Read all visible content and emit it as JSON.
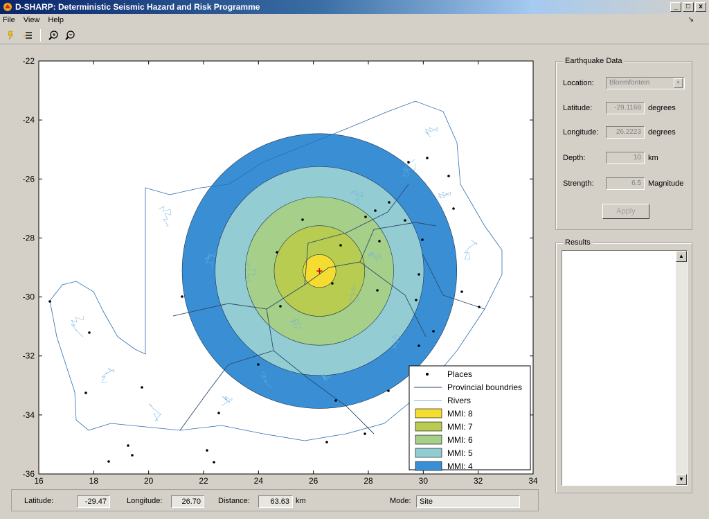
{
  "window": {
    "title": "D-SHARP: Deterministic Seismic Hazard and Risk Programme",
    "minimize": "_",
    "maximize": "□",
    "close": "x"
  },
  "menu": {
    "items": [
      "File",
      "View",
      "Help"
    ],
    "arrow": "↘"
  },
  "toolbar": {
    "icons": [
      "open-icon",
      "add-icon",
      "zoom-in-icon",
      "zoom-out-icon"
    ]
  },
  "map": {
    "x_ticks": [
      "16",
      "18",
      "20",
      "22",
      "24",
      "26",
      "28",
      "30",
      "32",
      "34"
    ],
    "y_ticks": [
      "-22",
      "-24",
      "-26",
      "-28",
      "-30",
      "-32",
      "-34",
      "-36"
    ],
    "xlim": [
      16,
      34
    ],
    "ylim": [
      -36,
      -22
    ],
    "epicenter": {
      "lon": 26.22,
      "lat": -29.12
    },
    "zones": [
      {
        "mmi": 4,
        "radius_deg": 5.0,
        "color": "#3a8fd4"
      },
      {
        "mmi": 5,
        "radius_deg": 3.8,
        "color": "#93cdd3"
      },
      {
        "mmi": 6,
        "radius_deg": 2.7,
        "color": "#a6cf8a"
      },
      {
        "mmi": 7,
        "radius_deg": 1.65,
        "color": "#b8cc52"
      },
      {
        "mmi": 8,
        "radius_deg": 0.6,
        "color": "#f4dd30"
      }
    ],
    "legend": {
      "places": "Places",
      "boundaries": "Provincial boundries",
      "rivers": "Rivers",
      "mmi": [
        "MMI: 8",
        "MMI: 7",
        "MMI: 6",
        "MMI: 5",
        "MMI: 4"
      ],
      "mmi_colors": [
        "#f4dd30",
        "#b8cc52",
        "#a6cf8a",
        "#93cdd3",
        "#3a8fd4"
      ]
    }
  },
  "earthquake": {
    "title": "Earthquake Data",
    "location_label": "Location:",
    "location_value": "Bloemfontein",
    "latitude_label": "Latitude:",
    "latitude_value": "-29.1168",
    "latitude_unit": "degrees",
    "longitude_label": "Longitude:",
    "longitude_value": "26.2223",
    "longitude_unit": "degrees",
    "depth_label": "Depth:",
    "depth_value": "10",
    "depth_unit": "km",
    "strength_label": "Strength:",
    "strength_value": "6.5",
    "strength_unit": "Magnitude",
    "apply_label": "Apply"
  },
  "results": {
    "title": "Results"
  },
  "status": {
    "latitude_label": "Latitude:",
    "latitude_value": "-29.47",
    "longitude_label": "Longitude:",
    "longitude_value": "26.70",
    "distance_label": "Distance:",
    "distance_value": "63.63",
    "distance_unit": "km",
    "mode_label": "Mode:",
    "mode_value": "Site"
  }
}
